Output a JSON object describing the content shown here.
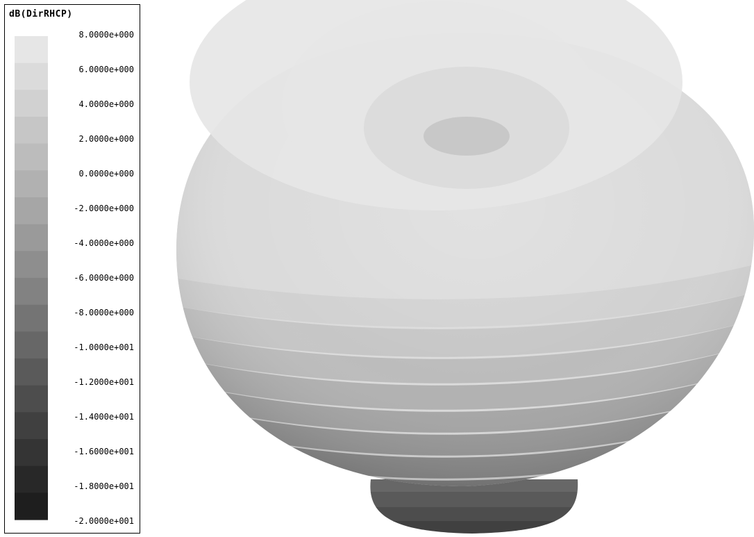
{
  "chart_data": {
    "type": "heatmap",
    "title": "dB(DirRHCP)",
    "scale_ticks": [
      "8.0000e+000",
      "6.0000e+000",
      "4.0000e+000",
      "2.0000e+000",
      "0.0000e+000",
      "-2.0000e+000",
      "-4.0000e+000",
      "-6.0000e+000",
      "-8.0000e+000",
      "-1.0000e+001",
      "-1.2000e+001",
      "-1.4000e+001",
      "-1.6000e+001",
      "-1.8000e+001",
      "-2.0000e+001"
    ],
    "scale_range": [
      -20,
      8
    ],
    "band_colors": [
      "#e6e6e6",
      "#dbdbdb",
      "#d1d1d1",
      "#c6c6c6",
      "#bcbcbc",
      "#b1b1b1",
      "#a6a6a6",
      "#9a9a9a",
      "#8e8e8e",
      "#828282",
      "#747474",
      "#676767",
      "#5a5a5a",
      "#4d4d4d",
      "#404040",
      "#343434",
      "#282828",
      "#1e1e1e"
    ]
  }
}
